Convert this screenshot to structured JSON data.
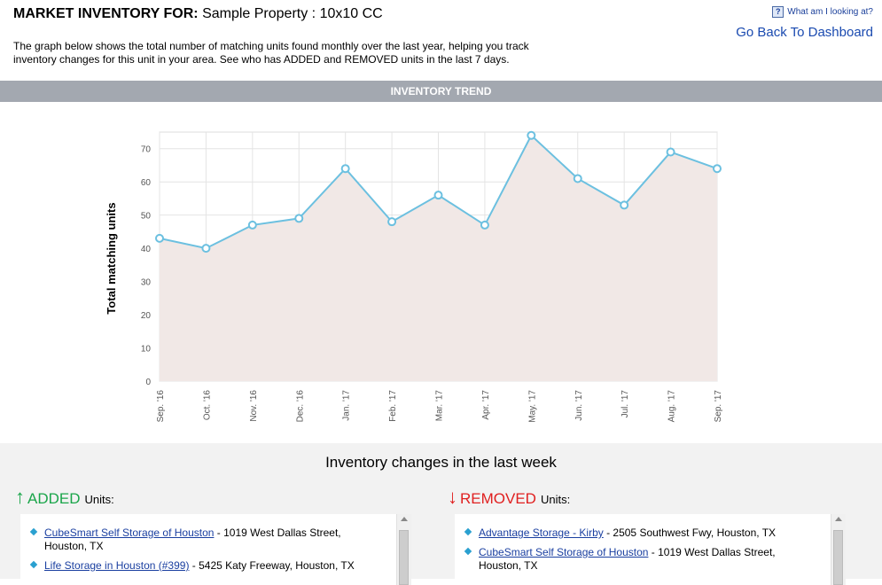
{
  "header": {
    "title_label": "MARKET INVENTORY FOR:",
    "title_value": "Sample Property : 10x10 CC",
    "help_link": "What am I looking at?",
    "back_link": "Go Back To Dashboard",
    "description": "The graph below shows the total number of matching units found monthly over the last year, helping you track inventory changes for this unit in your area. See who has ADDED and REMOVED units in the last 7 days."
  },
  "trend_bar": {
    "label": "INVENTORY TREND"
  },
  "chart_data": {
    "type": "area",
    "categories": [
      "Sep. '16",
      "Oct. '16",
      "Nov. '16",
      "Dec. '16",
      "Jan. '17",
      "Feb. '17",
      "Mar. '17",
      "Apr. '17",
      "May. '17",
      "Jun. '17",
      "Jul. '17",
      "Aug. '17",
      "Sep. '17"
    ],
    "values": [
      43,
      40,
      47,
      49,
      64,
      48,
      56,
      47,
      74,
      61,
      53,
      69,
      64
    ],
    "ylabel": "Total matching units",
    "xlabel": "",
    "title": "",
    "ylim": [
      0,
      75
    ],
    "yticks": [
      0,
      10,
      20,
      30,
      40,
      50,
      60,
      70
    ],
    "grid": true,
    "line_color": "#6cc0e0",
    "fill_color": "#f1e8e6"
  },
  "changes": {
    "title": "Inventory changes in the last week",
    "added": {
      "heading": "ADDED",
      "suffix": "Units:",
      "items": [
        {
          "name": "CubeSmart Self Storage of Houston",
          "address": " - 1019 West Dallas Street, Houston, TX"
        },
        {
          "name": "Life Storage in Houston (#399)",
          "address": " - 5425 Katy Freeway, Houston, TX"
        }
      ]
    },
    "removed": {
      "heading": "REMOVED",
      "suffix": "Units:",
      "items": [
        {
          "name": "Advantage Storage - Kirby",
          "address": " - 2505 Southwest Fwy, Houston, TX"
        },
        {
          "name": "CubeSmart Self Storage of Houston",
          "address": " - 1019 West Dallas Street, Houston, TX"
        }
      ]
    }
  },
  "colors": {
    "added": "#1aa54a",
    "removed": "#e02020",
    "link": "#1a3fa0",
    "bar": "#a3a8b0"
  }
}
